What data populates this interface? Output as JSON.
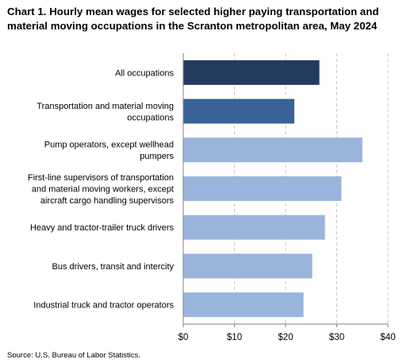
{
  "chart_data": {
    "type": "bar",
    "orientation": "horizontal",
    "title": "Chart 1. Hourly mean wages for selected higher paying transportation and material moving occupations in the Scranton metropolitan area, May 2024",
    "categories": [
      "All occupations",
      "Transportation and material moving occupations",
      "Pump operators, except wellhead pumpers",
      "First-line supervisors of transportation and material moving workers, except aircraft cargo handling supervisors",
      "Heavy and tractor-trailer truck drivers",
      "Bus drivers, transit and intercity",
      "Industrial truck and tractor operators"
    ],
    "category_lines": [
      [
        "All occupations"
      ],
      [
        "Transportation and material moving",
        "occupations"
      ],
      [
        "Pump operators, except wellhead",
        "pumpers"
      ],
      [
        "First-line supervisors of transportation",
        "and material moving workers, except",
        "aircraft cargo handling supervisors"
      ],
      [
        "Heavy and tractor-trailer truck drivers"
      ],
      [
        "Bus drivers, transit and intercity"
      ],
      [
        "Industrial truck and tractor operators"
      ]
    ],
    "values": [
      26.6,
      21.7,
      35.0,
      30.9,
      27.7,
      25.2,
      23.5
    ],
    "bar_colors": [
      "#243a5e",
      "#3a6298",
      "#9ab5db",
      "#9ab5db",
      "#9ab5db",
      "#9ab5db",
      "#9ab5db"
    ],
    "xlim": [
      0,
      40
    ],
    "x_ticks": [
      0,
      10,
      20,
      30,
      40
    ],
    "x_tick_labels": [
      "$0",
      "$10",
      "$20",
      "$30",
      "$40"
    ],
    "xlabel": "",
    "ylabel": "",
    "grid": "vertical dashed",
    "legend": "none"
  },
  "source": "Source: U.S. Bureau of Labor Statistics."
}
